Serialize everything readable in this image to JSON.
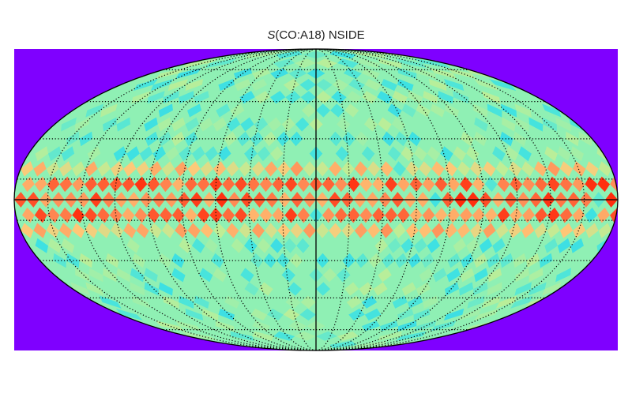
{
  "chart_data": {
    "type": "heatmap",
    "title_symbol": "S",
    "title_rest": "(CO:A18) NSIDE",
    "projection": "mollweide",
    "grid": true,
    "graticule_step_deg": 20,
    "colormap": "rainbow",
    "colors": {
      "background_fill": "#7f00ff",
      "sky_base": "#8ff0b4",
      "plane_hot": "#ff3a16",
      "plane_warm": "#ff8a55",
      "low": "#3ee2e2",
      "outline": "#000000"
    },
    "value_range": [
      0,
      1
    ],
    "typical_levels": {
      "high_latitude": 0.5,
      "galactic_plane": 0.9
    }
  }
}
